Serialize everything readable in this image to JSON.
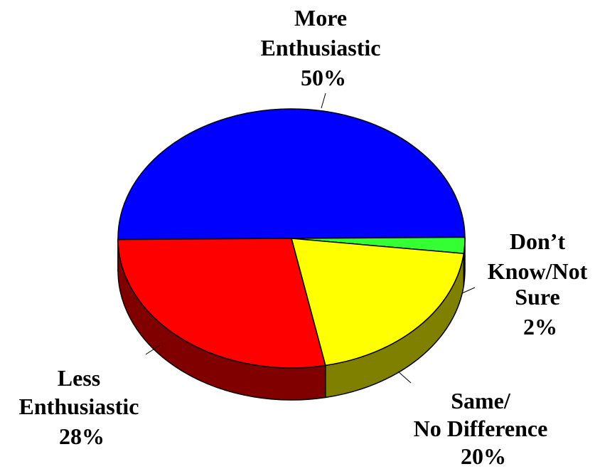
{
  "chart_data": {
    "type": "pie",
    "style": "3d",
    "slices": [
      {
        "label_lines": [
          "More",
          "Enthusiastic"
        ],
        "value_label": "50%",
        "value": 50,
        "color": "#0000ff",
        "side_color": "#00007f"
      },
      {
        "label_lines": [
          "Don’t",
          "Know/Not",
          "Sure"
        ],
        "value_label": "2%",
        "value": 2,
        "color": "#33ff33",
        "side_color": "#118811"
      },
      {
        "label_lines": [
          "Same/",
          "No Difference"
        ],
        "value_label": "20%",
        "value": 20,
        "color": "#ffff00",
        "side_color": "#808000"
      },
      {
        "label_lines": [
          "Less",
          "Enthusiastic"
        ],
        "value_label": "28%",
        "value": 28,
        "color": "#ff0000",
        "side_color": "#800000"
      }
    ]
  }
}
